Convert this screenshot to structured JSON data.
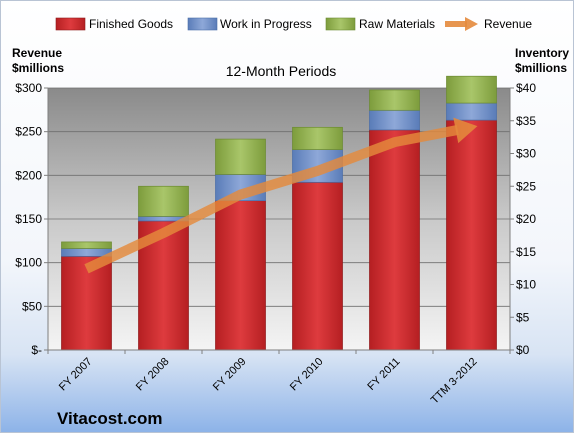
{
  "chart_data": {
    "type": "bar",
    "title": "12-Month Periods",
    "categories": [
      "FY 2007",
      "FY 2008",
      "FY 2009",
      "FY 2010",
      "FY 2011",
      "TTM 3-2012"
    ],
    "stacked": true,
    "series": [
      {
        "name": "Finished Goods",
        "axis": "right",
        "color": "#c8282a",
        "values": [
          14.3,
          19.7,
          22.8,
          25.6,
          33.6,
          35.1
        ]
      },
      {
        "name": "Work in Progress",
        "axis": "right",
        "color": "#6b8cc7",
        "values": [
          1.2,
          0.7,
          4.0,
          5.0,
          3.0,
          2.6
        ]
      },
      {
        "name": "Raw Materials",
        "axis": "right",
        "color": "#8fae4c",
        "values": [
          1.0,
          4.6,
          5.4,
          3.4,
          3.1,
          4.1
        ]
      }
    ],
    "line_series": {
      "name": "Revenue",
      "axis": "left",
      "color": "#e48a3c",
      "values": [
        93,
        134,
        178,
        205,
        238,
        255
      ]
    },
    "left_axis": {
      "label_line1": "Revenue",
      "label_line2": "$millions",
      "range": [
        0,
        300
      ],
      "ticks": [
        0,
        50,
        100,
        150,
        200,
        250,
        300
      ],
      "tick_labels": [
        "$-",
        "$50",
        "$100",
        "$150",
        "$200",
        "$250",
        "$300"
      ]
    },
    "right_axis": {
      "label_line1": "Inventory",
      "label_line2": "$millions",
      "range": [
        0,
        40
      ],
      "ticks": [
        0,
        5,
        10,
        15,
        20,
        25,
        30,
        35,
        40
      ],
      "tick_labels": [
        "$0",
        "$5",
        "$10",
        "$15",
        "$20",
        "$25",
        "$30",
        "$35",
        "$40"
      ]
    },
    "grid": true,
    "legend_position": "top"
  },
  "legend": [
    {
      "label": "Finished Goods",
      "color": "#c8282a",
      "kind": "box"
    },
    {
      "label": "Work in Progress",
      "color": "#6b8cc7",
      "kind": "box"
    },
    {
      "label": "Raw Materials",
      "color": "#8fae4c",
      "kind": "box"
    },
    {
      "label": "Revenue",
      "color": "#e48a3c",
      "kind": "arrow"
    }
  ],
  "watermark": "Vitacost.com"
}
